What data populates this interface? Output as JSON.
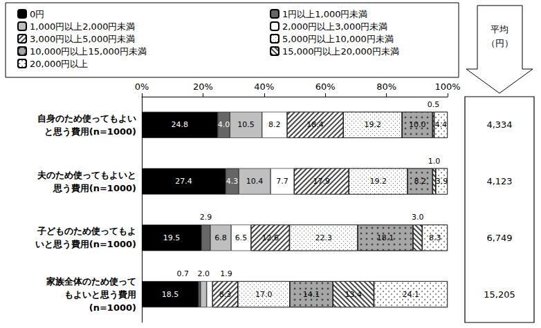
{
  "chart_data": {
    "type": "bar",
    "orientation": "horizontal",
    "stacked": true,
    "data_labels": true,
    "grid": false,
    "legend": "top",
    "categories": [
      "自身のため使ってもよい\nと思う費用(n=1000)",
      "夫のため使ってもよいと\n思う費用(n=1000)",
      "子どものため使ってもよ\nいと思う費用(n=1000)",
      "家族全体のため使って\nもよいと思う費用\n(n=1000)"
    ],
    "xlim": [
      0,
      100
    ],
    "xticks": [
      {
        "value": 0,
        "label": "0%"
      },
      {
        "value": 20,
        "label": "20%"
      },
      {
        "value": 40,
        "label": "40%"
      },
      {
        "value": 60,
        "label": "60%"
      },
      {
        "value": 80,
        "label": "80%"
      },
      {
        "value": 100,
        "label": "100%"
      }
    ],
    "series": [
      {
        "name": "0円",
        "color": "#000000",
        "values": [
          24.8,
          27.4,
          19.5,
          18.5
        ],
        "value_labels": [
          "24.8",
          "27.4",
          "19.5",
          "18.5"
        ]
      },
      {
        "name": "1円以上1,000円未満",
        "color": "#666666",
        "values": [
          4.0,
          4.3,
          2.9,
          0.7
        ],
        "value_labels": [
          "4.0",
          "4.3",
          "2.9",
          "0.7"
        ]
      },
      {
        "name": "1,000円以上2,000円未満",
        "color": "#bfbfbf",
        "values": [
          10.5,
          10.4,
          6.8,
          2.0
        ],
        "value_labels": [
          "10.5",
          "10.4",
          "6.8",
          "2.0"
        ]
      },
      {
        "name": "2,000円以上3,000円未満",
        "color": "#ffffff",
        "values": [
          8.2,
          7.7,
          6.5,
          1.9
        ],
        "value_labels": [
          "8.2",
          "7.7",
          "6.5",
          "1.9"
        ]
      },
      {
        "name": "3,000円以上5,000円未満",
        "color": "#ffffff",
        "values": [
          18.4,
          17.9,
          12.6,
          8.3
        ],
        "value_labels": [
          "18.4",
          "17.9",
          "12.6",
          "8.3"
        ]
      },
      {
        "name": "5,000円以上10,000円未満",
        "color": "#ffffff",
        "values": [
          19.2,
          19.2,
          22.3,
          17.0
        ],
        "value_labels": [
          "19.2",
          "19.2",
          "22.3",
          "17.0"
        ]
      },
      {
        "name": "10,000円以上15,000円未満",
        "color": "#a6a6a6",
        "values": [
          10.0,
          8.2,
          18.1,
          14.1
        ],
        "value_labels": [
          "10.0",
          "8.2",
          "18.1",
          "14.1"
        ]
      },
      {
        "name": "15,000円以上20,000円未満",
        "color": "#ffffff",
        "values": [
          0.5,
          1.0,
          3.0,
          13.4
        ],
        "value_labels": [
          "0.5",
          "1.0",
          "3.0",
          "13.4"
        ]
      },
      {
        "name": "20,000円以上",
        "color": "#ffffff",
        "values": [
          4.4,
          3.9,
          8.3,
          24.1
        ],
        "value_labels": [
          "4.4",
          "3.9",
          "8.3",
          "24.1"
        ]
      }
    ],
    "averages": {
      "title": "平均\n（円）",
      "values": [
        4334,
        4123,
        6749,
        15205
      ],
      "value_labels": [
        "4,334",
        "4,123",
        "6,749",
        "15,205"
      ]
    }
  }
}
